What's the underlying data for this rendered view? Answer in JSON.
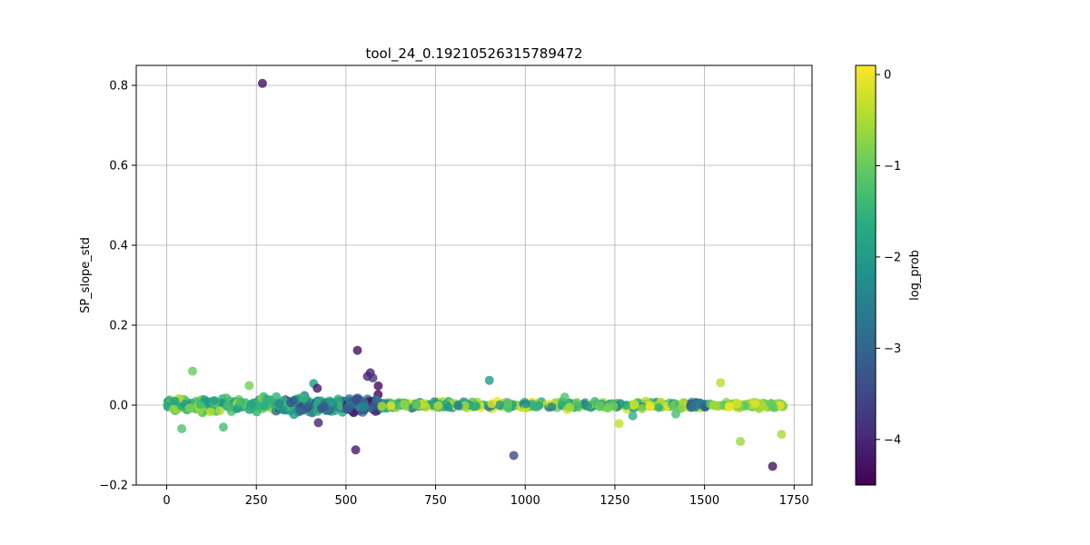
{
  "chart_data": {
    "type": "scatter",
    "title": "tool_24_0.19210526315789472",
    "xlabel": "",
    "ylabel": "SP_slope_std",
    "xlim": [
      -85,
      1800
    ],
    "ylim": [
      -0.2,
      0.85
    ],
    "x_ticks": [
      0,
      250,
      500,
      750,
      1000,
      1250,
      1500,
      1750
    ],
    "y_ticks": [
      -0.2,
      0.0,
      0.2,
      0.4,
      0.6,
      0.8
    ],
    "x_tick_labels": [
      "0",
      "250",
      "500",
      "750",
      "1000",
      "1250",
      "1500",
      "1750"
    ],
    "y_tick_labels": [
      "−0.2",
      "0.0",
      "0.2",
      "0.4",
      "0.6",
      "0.8"
    ],
    "grid": true,
    "colormap": "viridis",
    "marker_alpha": 0.8,
    "colorbar": {
      "label": "log_prob",
      "range": [
        -4.5,
        0.1
      ],
      "ticks": [
        0,
        -1,
        -2,
        -3,
        -4
      ],
      "tick_labels": [
        "0",
        "−1",
        "−2",
        "−3",
        "−4"
      ]
    },
    "band": {
      "comment_free": true,
      "segments": [
        {
          "x_range": [
            0,
            300
          ],
          "y_center": 0.0,
          "y_spread": 0.025,
          "color_range": [
            -2.2,
            -0.4
          ],
          "count": 150
        },
        {
          "x_range": [
            300,
            500
          ],
          "y_center": 0.0,
          "y_spread": 0.028,
          "color_range": [
            -3.6,
            -1.2
          ],
          "count": 110
        },
        {
          "x_range": [
            500,
            600
          ],
          "y_center": 0.0,
          "y_spread": 0.03,
          "color_range": [
            -4.5,
            -2.2
          ],
          "count": 70
        },
        {
          "x_range": [
            600,
            1500
          ],
          "y_center": 0.0,
          "y_spread": 0.012,
          "color_range": [
            -2.6,
            0.1
          ],
          "count": 380
        },
        {
          "x_range": [
            1460,
            1510
          ],
          "y_center": 0.0,
          "y_spread": 0.01,
          "color_range": [
            -3.3,
            -2.3
          ],
          "count": 20
        },
        {
          "x_range": [
            1510,
            1720
          ],
          "y_center": 0.0,
          "y_spread": 0.01,
          "color_range": [
            -1.2,
            0.1
          ],
          "count": 80
        }
      ]
    },
    "outliers": [
      {
        "x": 267,
        "y": 0.805,
        "c": -4.3
      },
      {
        "x": 532,
        "y": 0.137,
        "c": -4.3
      },
      {
        "x": 527,
        "y": -0.112,
        "c": -4.2
      },
      {
        "x": 968,
        "y": -0.126,
        "c": -3.4
      },
      {
        "x": 1690,
        "y": -0.153,
        "c": -4.3
      },
      {
        "x": 900,
        "y": 0.062,
        "c": -2.0
      },
      {
        "x": 1545,
        "y": 0.056,
        "c": -0.4
      },
      {
        "x": 1262,
        "y": -0.046,
        "c": -0.3
      },
      {
        "x": 1600,
        "y": -0.091,
        "c": -0.6
      },
      {
        "x": 1715,
        "y": -0.073,
        "c": -0.5
      },
      {
        "x": 72,
        "y": 0.085,
        "c": -1.0
      },
      {
        "x": 230,
        "y": 0.049,
        "c": -0.9
      },
      {
        "x": 158,
        "y": -0.055,
        "c": -1.3
      },
      {
        "x": 42,
        "y": -0.059,
        "c": -1.2
      },
      {
        "x": 410,
        "y": 0.054,
        "c": -2.0
      },
      {
        "x": 420,
        "y": 0.042,
        "c": -4.2
      },
      {
        "x": 423,
        "y": -0.044,
        "c": -4.1
      },
      {
        "x": 560,
        "y": 0.072,
        "c": -4.0
      },
      {
        "x": 568,
        "y": 0.081,
        "c": -4.1
      },
      {
        "x": 575,
        "y": 0.068,
        "c": -3.8
      },
      {
        "x": 590,
        "y": 0.048,
        "c": -4.4
      },
      {
        "x": 1300,
        "y": -0.027,
        "c": -1.6
      },
      {
        "x": 1420,
        "y": -0.022,
        "c": -1.3
      },
      {
        "x": 1110,
        "y": 0.02,
        "c": -1.2
      }
    ]
  }
}
